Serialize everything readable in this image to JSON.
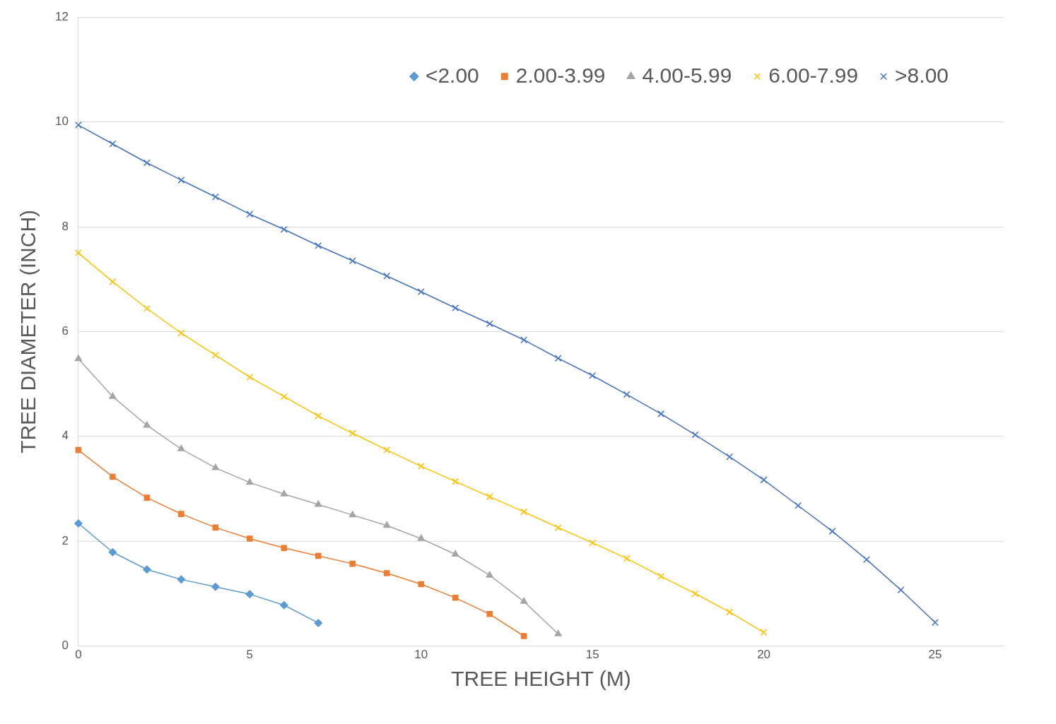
{
  "chart_data": {
    "type": "line",
    "xlabel": "TREE HEIGHT (M)",
    "ylabel": "TREE DIAMETER (INCH)",
    "xlim": [
      0,
      27
    ],
    "xticks": [
      0,
      5,
      10,
      15,
      20,
      25
    ],
    "ylim": [
      0,
      12
    ],
    "yticks": [
      0,
      2,
      4,
      6,
      8,
      10,
      12
    ],
    "grid": "y",
    "legend": "top right",
    "series": [
      {
        "name": "<2.00",
        "color": "#5b9bd5",
        "marker": "diamond",
        "x": [
          0,
          1,
          2,
          3,
          4,
          5,
          6,
          7
        ],
        "values": [
          2.34,
          1.79,
          1.46,
          1.27,
          1.13,
          0.99,
          0.78,
          0.44
        ]
      },
      {
        "name": "2.00-3.99",
        "color": "#ed7d31",
        "marker": "square",
        "x": [
          0,
          1,
          2,
          3,
          4,
          5,
          6,
          7,
          8,
          9,
          10,
          11,
          12,
          13
        ],
        "values": [
          3.74,
          3.23,
          2.83,
          2.52,
          2.26,
          2.05,
          1.87,
          1.72,
          1.57,
          1.39,
          1.18,
          0.92,
          0.61,
          0.19
        ]
      },
      {
        "name": "4.00-5.99",
        "color": "#a5a5a5",
        "marker": "triangle",
        "x": [
          0,
          1,
          2,
          3,
          4,
          5,
          6,
          7,
          8,
          9,
          10,
          11,
          12,
          13,
          14
        ],
        "values": [
          5.48,
          4.76,
          4.21,
          3.76,
          3.4,
          3.12,
          2.9,
          2.7,
          2.5,
          2.3,
          2.05,
          1.75,
          1.35,
          0.85,
          0.23
        ]
      },
      {
        "name": "6.00-7.99",
        "color": "#ffc000",
        "marker": "cross",
        "x": [
          0,
          1,
          2,
          3,
          4,
          5,
          6,
          7,
          8,
          9,
          10,
          11,
          12,
          13,
          14,
          15,
          16,
          17,
          18,
          19,
          20
        ],
        "values": [
          7.5,
          6.95,
          6.44,
          5.97,
          5.55,
          5.13,
          4.76,
          4.39,
          4.06,
          3.74,
          3.43,
          3.14,
          2.85,
          2.56,
          2.26,
          1.97,
          1.67,
          1.33,
          1.0,
          0.65,
          0.26
        ]
      },
      {
        "name": ">8.00",
        "color": "#4472c4",
        "marker": "cross",
        "x": [
          0,
          1,
          2,
          3,
          4,
          5,
          6,
          7,
          8,
          9,
          10,
          11,
          12,
          13,
          14,
          15,
          16,
          17,
          18,
          19,
          20,
          21,
          22,
          23,
          24,
          25
        ],
        "values": [
          9.94,
          9.58,
          9.22,
          8.89,
          8.57,
          8.24,
          7.95,
          7.64,
          7.35,
          7.06,
          6.76,
          6.45,
          6.15,
          5.84,
          5.49,
          5.16,
          4.8,
          4.43,
          4.03,
          3.61,
          3.17,
          2.68,
          2.19,
          1.65,
          1.07,
          0.45
        ]
      }
    ]
  }
}
